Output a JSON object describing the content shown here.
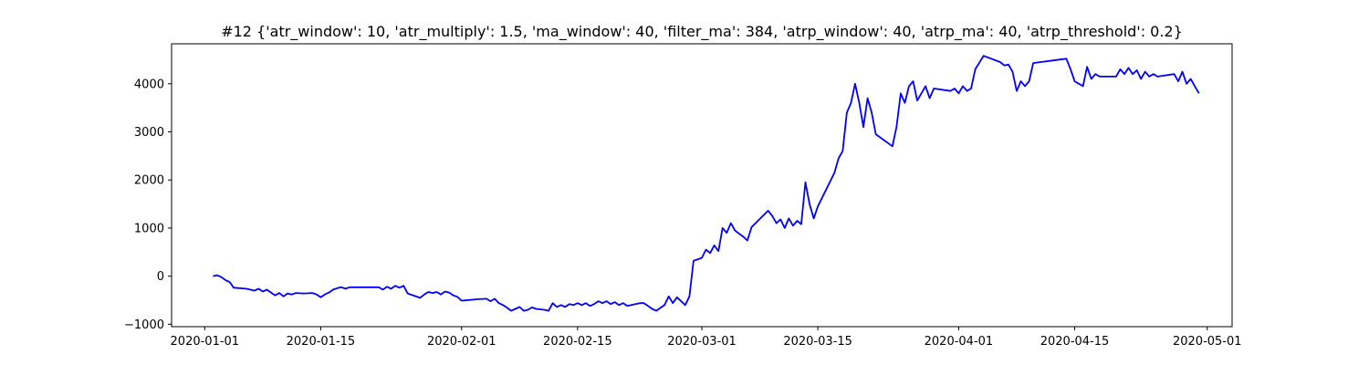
{
  "chart_data": {
    "type": "line",
    "title": "#12 {'atr_window': 10, 'atr_multiply': 1.5, 'ma_window': 40, 'filter_ma': 384, 'atrp_window': 40, 'atrp_ma': 40, 'atrp_threshold': 0.2}",
    "xlabel": "",
    "ylabel": "",
    "xlim": [
      "2019-12-28",
      "2020-05-04"
    ],
    "ylim": [
      -1050,
      4830
    ],
    "grid": false,
    "legend": "none",
    "x_ticks": [
      "2020-01-01",
      "2020-01-15",
      "2020-02-01",
      "2020-02-15",
      "2020-03-01",
      "2020-03-15",
      "2020-04-01",
      "2020-04-15",
      "2020-05-01"
    ],
    "y_ticks": [
      -1000,
      0,
      1000,
      2000,
      3000,
      4000
    ],
    "series": [
      {
        "name": "",
        "color": "#0000ff",
        "points": [
          [
            "2020-01-02",
            0
          ],
          [
            "2020-01-02T12",
            20
          ],
          [
            "2020-01-03",
            -20
          ],
          [
            "2020-01-03T12",
            -80
          ],
          [
            "2020-01-04",
            -120
          ],
          [
            "2020-01-04T12",
            -240
          ],
          [
            "2020-01-06",
            -260
          ],
          [
            "2020-01-07",
            -300
          ],
          [
            "2020-01-07T12",
            -260
          ],
          [
            "2020-01-08",
            -320
          ],
          [
            "2020-01-08T12",
            -280
          ],
          [
            "2020-01-09",
            -340
          ],
          [
            "2020-01-09T12",
            -400
          ],
          [
            "2020-01-10",
            -350
          ],
          [
            "2020-01-10T12",
            -420
          ],
          [
            "2020-01-11",
            -360
          ],
          [
            "2020-01-11T12",
            -380
          ],
          [
            "2020-01-12",
            -350
          ],
          [
            "2020-01-13",
            -360
          ],
          [
            "2020-01-14",
            -350
          ],
          [
            "2020-01-14T12",
            -380
          ],
          [
            "2020-01-15",
            -440
          ],
          [
            "2020-01-15T12",
            -380
          ],
          [
            "2020-01-16",
            -340
          ],
          [
            "2020-01-16T12",
            -280
          ],
          [
            "2020-01-17",
            -250
          ],
          [
            "2020-01-17T12",
            -230
          ],
          [
            "2020-01-18",
            -260
          ],
          [
            "2020-01-18T12",
            -230
          ],
          [
            "2020-01-19",
            -230
          ],
          [
            "2020-01-21",
            -230
          ],
          [
            "2020-01-22",
            -230
          ],
          [
            "2020-01-22T12",
            -280
          ],
          [
            "2020-01-23",
            -220
          ],
          [
            "2020-01-23T12",
            -260
          ],
          [
            "2020-01-24",
            -200
          ],
          [
            "2020-01-24T12",
            -240
          ],
          [
            "2020-01-25",
            -200
          ],
          [
            "2020-01-25T12",
            -360
          ],
          [
            "2020-01-27",
            -450
          ],
          [
            "2020-01-27T12",
            -380
          ],
          [
            "2020-01-28",
            -330
          ],
          [
            "2020-01-28T12",
            -350
          ],
          [
            "2020-01-29",
            -330
          ],
          [
            "2020-01-29T12",
            -380
          ],
          [
            "2020-01-30",
            -320
          ],
          [
            "2020-01-30T12",
            -340
          ],
          [
            "2020-01-31",
            -400
          ],
          [
            "2020-01-31T12",
            -430
          ],
          [
            "2020-02-01",
            -510
          ],
          [
            "2020-02-03",
            -480
          ],
          [
            "2020-02-04",
            -470
          ],
          [
            "2020-02-04T12",
            -520
          ],
          [
            "2020-02-05",
            -470
          ],
          [
            "2020-02-05T12",
            -560
          ],
          [
            "2020-02-06",
            -600
          ],
          [
            "2020-02-06T12",
            -660
          ],
          [
            "2020-02-07",
            -720
          ],
          [
            "2020-02-07T12",
            -680
          ],
          [
            "2020-02-08",
            -640
          ],
          [
            "2020-02-08T12",
            -720
          ],
          [
            "2020-02-09",
            -700
          ],
          [
            "2020-02-09T12",
            -650
          ],
          [
            "2020-02-10",
            -680
          ],
          [
            "2020-02-11",
            -700
          ],
          [
            "2020-02-11T12",
            -720
          ],
          [
            "2020-02-12",
            -560
          ],
          [
            "2020-02-12T12",
            -640
          ],
          [
            "2020-02-13",
            -600
          ],
          [
            "2020-02-13T12",
            -640
          ],
          [
            "2020-02-14",
            -580
          ],
          [
            "2020-02-14T12",
            -600
          ],
          [
            "2020-02-15",
            -560
          ],
          [
            "2020-02-15T12",
            -600
          ],
          [
            "2020-02-16",
            -560
          ],
          [
            "2020-02-16T12",
            -620
          ],
          [
            "2020-02-17",
            -580
          ],
          [
            "2020-02-17T12",
            -520
          ],
          [
            "2020-02-18",
            -560
          ],
          [
            "2020-02-18T12",
            -520
          ],
          [
            "2020-02-19",
            -580
          ],
          [
            "2020-02-19T12",
            -540
          ],
          [
            "2020-02-20",
            -600
          ],
          [
            "2020-02-20T12",
            -560
          ],
          [
            "2020-02-21",
            -620
          ],
          [
            "2020-02-21T12",
            -600
          ],
          [
            "2020-02-22",
            -580
          ],
          [
            "2020-02-22T12",
            -560
          ],
          [
            "2020-02-23",
            -560
          ],
          [
            "2020-02-23T12",
            -620
          ],
          [
            "2020-02-24",
            -680
          ],
          [
            "2020-02-24T12",
            -720
          ],
          [
            "2020-02-25",
            -660
          ],
          [
            "2020-02-25T12",
            -600
          ],
          [
            "2020-02-26",
            -420
          ],
          [
            "2020-02-26T12",
            -560
          ],
          [
            "2020-02-27",
            -440
          ],
          [
            "2020-02-27T12",
            -520
          ],
          [
            "2020-02-28",
            -600
          ],
          [
            "2020-02-28T12",
            -420
          ],
          [
            "2020-02-29",
            320
          ],
          [
            "2020-03-01",
            380
          ],
          [
            "2020-03-01T12",
            550
          ],
          [
            "2020-03-02",
            480
          ],
          [
            "2020-03-02T12",
            640
          ],
          [
            "2020-03-03",
            520
          ],
          [
            "2020-03-03T12",
            1000
          ],
          [
            "2020-03-04",
            900
          ],
          [
            "2020-03-04T12",
            1100
          ],
          [
            "2020-03-05",
            950
          ],
          [
            "2020-03-05T12",
            880
          ],
          [
            "2020-03-06",
            820
          ],
          [
            "2020-03-06T12",
            740
          ],
          [
            "2020-03-07",
            1020
          ],
          [
            "2020-03-09",
            1360
          ],
          [
            "2020-03-09T12",
            1250
          ],
          [
            "2020-03-10",
            1100
          ],
          [
            "2020-03-10T12",
            1180
          ],
          [
            "2020-03-11",
            1000
          ],
          [
            "2020-03-11T12",
            1200
          ],
          [
            "2020-03-12",
            1050
          ],
          [
            "2020-03-12T12",
            1150
          ],
          [
            "2020-03-13",
            1080
          ],
          [
            "2020-03-13T12",
            1950
          ],
          [
            "2020-03-14",
            1500
          ],
          [
            "2020-03-14T12",
            1200
          ],
          [
            "2020-03-15",
            1450
          ],
          [
            "2020-03-17",
            2150
          ],
          [
            "2020-03-17T12",
            2450
          ],
          [
            "2020-03-18",
            2600
          ],
          [
            "2020-03-18T12",
            3400
          ],
          [
            "2020-03-19",
            3600
          ],
          [
            "2020-03-19T12",
            4000
          ],
          [
            "2020-03-20",
            3600
          ],
          [
            "2020-03-20T12",
            3100
          ],
          [
            "2020-03-21",
            3700
          ],
          [
            "2020-03-21T12",
            3400
          ],
          [
            "2020-03-22",
            2950
          ],
          [
            "2020-03-24",
            2700
          ],
          [
            "2020-03-24T12",
            3100
          ],
          [
            "2020-03-25",
            3800
          ],
          [
            "2020-03-25T12",
            3600
          ],
          [
            "2020-03-26",
            3950
          ],
          [
            "2020-03-26T12",
            4050
          ],
          [
            "2020-03-27",
            3650
          ],
          [
            "2020-03-27T12",
            3800
          ],
          [
            "2020-03-28",
            3950
          ],
          [
            "2020-03-28T12",
            3700
          ],
          [
            "2020-03-29",
            3900
          ],
          [
            "2020-03-31",
            3850
          ],
          [
            "2020-03-31T12",
            3900
          ],
          [
            "2020-04-01",
            3800
          ],
          [
            "2020-04-01T12",
            3950
          ],
          [
            "2020-04-02",
            3850
          ],
          [
            "2020-04-02T12",
            3900
          ],
          [
            "2020-04-03",
            4300
          ],
          [
            "2020-04-04",
            4580
          ],
          [
            "2020-04-06",
            4450
          ],
          [
            "2020-04-06T12",
            4380
          ],
          [
            "2020-04-07",
            4400
          ],
          [
            "2020-04-07T12",
            4250
          ],
          [
            "2020-04-08",
            3850
          ],
          [
            "2020-04-08T12",
            4050
          ],
          [
            "2020-04-09",
            3950
          ],
          [
            "2020-04-09T12",
            4050
          ],
          [
            "2020-04-10",
            4430
          ],
          [
            "2020-04-14",
            4520
          ],
          [
            "2020-04-14T12",
            4300
          ],
          [
            "2020-04-15",
            4050
          ],
          [
            "2020-04-15T12",
            4000
          ],
          [
            "2020-04-16",
            3950
          ],
          [
            "2020-04-16T12",
            4350
          ],
          [
            "2020-04-17",
            4100
          ],
          [
            "2020-04-17T12",
            4200
          ],
          [
            "2020-04-18",
            4150
          ],
          [
            "2020-04-20",
            4150
          ],
          [
            "2020-04-20T12",
            4300
          ],
          [
            "2020-04-21",
            4200
          ],
          [
            "2020-04-21T12",
            4330
          ],
          [
            "2020-04-22",
            4200
          ],
          [
            "2020-04-22T12",
            4280
          ],
          [
            "2020-04-23",
            4100
          ],
          [
            "2020-04-23T12",
            4250
          ],
          [
            "2020-04-24",
            4150
          ],
          [
            "2020-04-24T12",
            4200
          ],
          [
            "2020-04-25",
            4150
          ],
          [
            "2020-04-27",
            4200
          ],
          [
            "2020-04-27T12",
            4050
          ],
          [
            "2020-04-28",
            4250
          ],
          [
            "2020-04-28T12",
            4000
          ],
          [
            "2020-04-29",
            4100
          ],
          [
            "2020-04-29T12",
            3950
          ],
          [
            "2020-04-30",
            3800
          ]
        ]
      }
    ]
  }
}
